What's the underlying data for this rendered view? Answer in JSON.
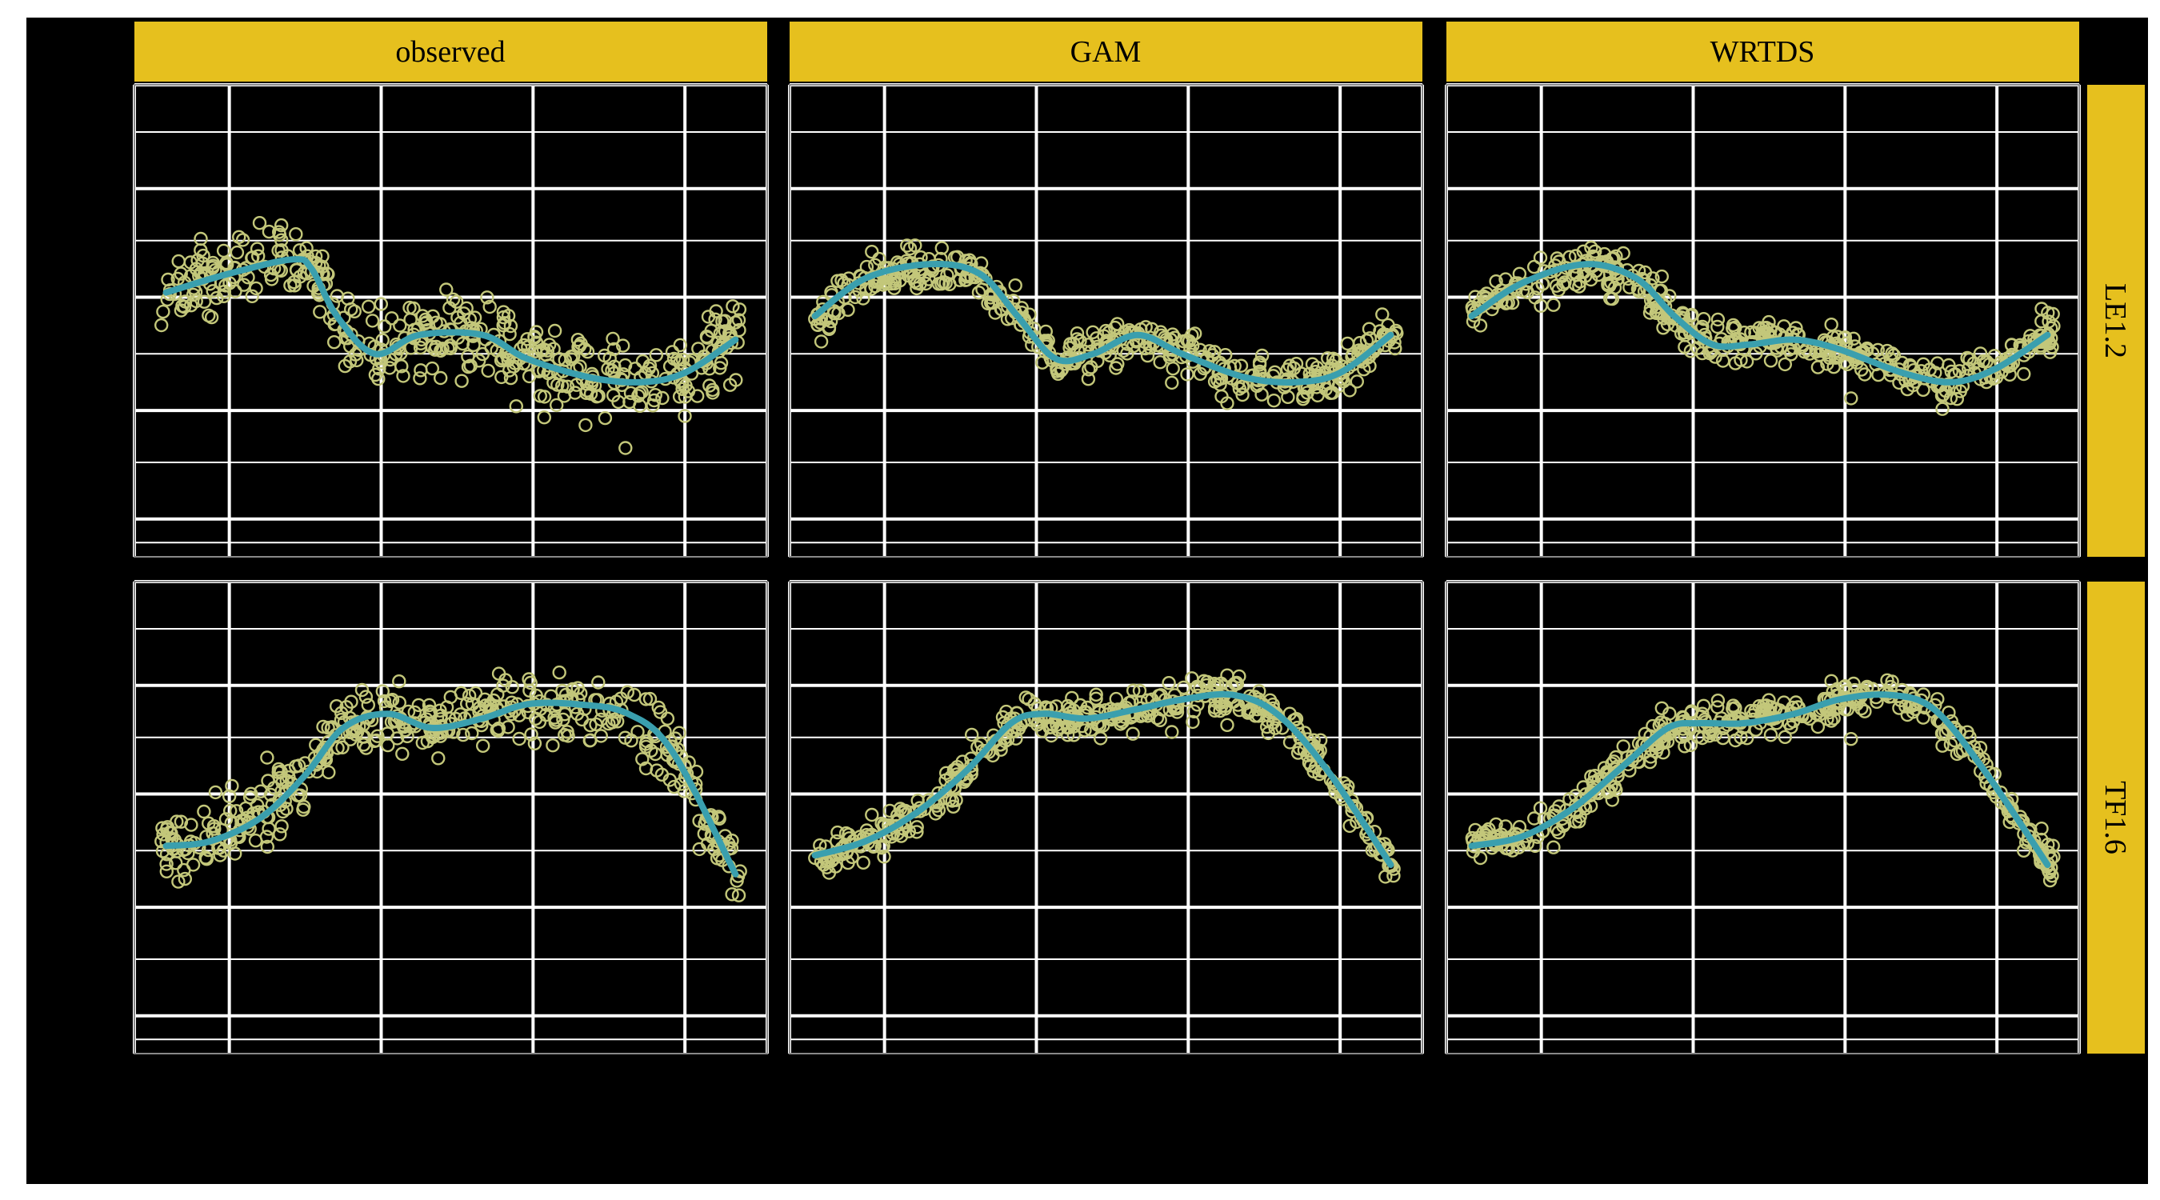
{
  "colors": {
    "background": "#000000",
    "panel_background": "#000000",
    "grid_major": "#ffffff",
    "grid_minor": "#ffffff",
    "panel_border": "#888888",
    "strip_fill": "#e6c01e",
    "strip_text": "#000000",
    "points": "#c3c77a",
    "smooth_line": "#3a9fae"
  },
  "chart_data": {
    "type": "scatter",
    "layout": "faceted 2 rows x 3 columns",
    "title": "",
    "xlabel": "",
    "ylabel": "",
    "x_tick_labels": [],
    "y_tick_labels": [],
    "columns": [
      "observed",
      "GAM",
      "WRTDS"
    ],
    "rows": [
      "LE1.2",
      "TF1.6"
    ],
    "xlim": [
      0,
      1
    ],
    "ylim": [
      0,
      1
    ],
    "grid": true,
    "legend": "none",
    "panels": [
      {
        "column": "observed",
        "row": "LE1.2",
        "scatter": 1.0,
        "smooth": {
          "x": [
            0.05,
            0.15,
            0.25,
            0.28,
            0.32,
            0.38,
            0.45,
            0.55,
            0.62,
            0.72,
            0.8,
            0.87,
            0.95
          ],
          "y": [
            0.56,
            0.6,
            0.63,
            0.61,
            0.51,
            0.43,
            0.47,
            0.47,
            0.42,
            0.38,
            0.37,
            0.39,
            0.46
          ]
        }
      },
      {
        "column": "GAM",
        "row": "LE1.2",
        "scatter": 0.55,
        "smooth": {
          "x": [
            0.04,
            0.12,
            0.22,
            0.3,
            0.36,
            0.42,
            0.48,
            0.55,
            0.62,
            0.72,
            0.8,
            0.87,
            0.95
          ],
          "y": [
            0.51,
            0.59,
            0.62,
            0.6,
            0.51,
            0.42,
            0.43,
            0.47,
            0.43,
            0.38,
            0.37,
            0.39,
            0.47
          ]
        }
      },
      {
        "column": "WRTDS",
        "row": "LE1.2",
        "scatter": 0.55,
        "smooth": {
          "x": [
            0.04,
            0.12,
            0.22,
            0.3,
            0.36,
            0.42,
            0.48,
            0.55,
            0.62,
            0.72,
            0.8,
            0.87,
            0.95
          ],
          "y": [
            0.51,
            0.58,
            0.62,
            0.59,
            0.51,
            0.45,
            0.45,
            0.46,
            0.44,
            0.39,
            0.37,
            0.4,
            0.47
          ]
        }
      },
      {
        "column": "observed",
        "row": "TF1.6",
        "scatter": 0.85,
        "smooth": {
          "x": [
            0.05,
            0.12,
            0.2,
            0.27,
            0.33,
            0.4,
            0.47,
            0.55,
            0.62,
            0.7,
            0.78,
            0.85,
            0.95
          ],
          "y": [
            0.44,
            0.45,
            0.5,
            0.59,
            0.69,
            0.72,
            0.69,
            0.71,
            0.74,
            0.74,
            0.72,
            0.64,
            0.38
          ]
        }
      },
      {
        "column": "GAM",
        "row": "TF1.6",
        "scatter": 0.5,
        "smooth": {
          "x": [
            0.04,
            0.12,
            0.2,
            0.28,
            0.35,
            0.4,
            0.47,
            0.55,
            0.62,
            0.7,
            0.77,
            0.85,
            0.95
          ],
          "y": [
            0.42,
            0.45,
            0.51,
            0.6,
            0.7,
            0.72,
            0.71,
            0.73,
            0.75,
            0.76,
            0.72,
            0.6,
            0.4
          ]
        }
      },
      {
        "column": "WRTDS",
        "row": "TF1.6",
        "scatter": 0.5,
        "smooth": {
          "x": [
            0.04,
            0.12,
            0.2,
            0.28,
            0.35,
            0.4,
            0.47,
            0.55,
            0.62,
            0.7,
            0.77,
            0.85,
            0.95
          ],
          "y": [
            0.44,
            0.46,
            0.52,
            0.61,
            0.69,
            0.7,
            0.7,
            0.72,
            0.75,
            0.76,
            0.73,
            0.6,
            0.4
          ]
        }
      }
    ]
  }
}
